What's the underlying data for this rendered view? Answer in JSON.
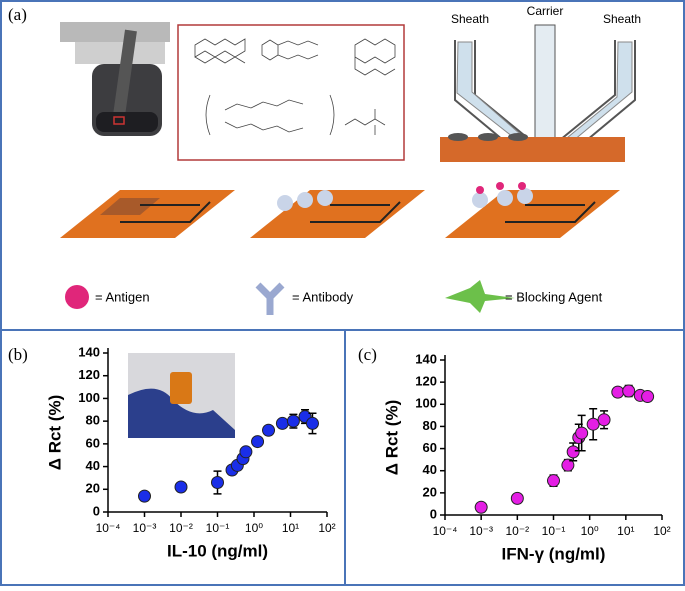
{
  "panel_a": {
    "label": "(a)",
    "nozzle_labels": [
      "Sheath",
      "Carrier",
      "Sheath"
    ],
    "legend": [
      "= Antigen",
      "= Antibody",
      "= Blocking Agent"
    ]
  },
  "chart_data": [
    {
      "type": "scatter",
      "panel_label": "(b)",
      "xlabel": "IL-10 (ng/ml)",
      "ylabel": "Δ Rct (%)",
      "xscale": "log",
      "xlim": [
        0.0001,
        100
      ],
      "ylim": [
        0,
        140
      ],
      "xticks": [
        {
          "value": 0.0001,
          "label": "10⁻⁴"
        },
        {
          "value": 0.001,
          "label": "10⁻³"
        },
        {
          "value": 0.01,
          "label": "10⁻²"
        },
        {
          "value": 0.1,
          "label": "10⁻¹"
        },
        {
          "value": 1,
          "label": "10⁰"
        },
        {
          "value": 10,
          "label": "10¹"
        },
        {
          "value": 100,
          "label": "10²"
        }
      ],
      "yticks": [
        0,
        20,
        40,
        60,
        80,
        100,
        120,
        140
      ],
      "series": [
        {
          "color": "#1a2ee8",
          "x": [
            0.001,
            0.01,
            0.1,
            0.25,
            0.35,
            0.5,
            0.6,
            1.25,
            2.5,
            6,
            12,
            25,
            40
          ],
          "values": [
            14,
            22,
            26,
            37,
            41,
            47,
            53,
            62,
            72,
            78,
            80,
            84,
            78
          ],
          "errors": [
            0,
            0,
            10,
            3,
            3,
            3,
            3,
            2,
            2,
            3,
            6,
            6,
            9
          ]
        }
      ]
    },
    {
      "type": "scatter",
      "panel_label": "(c)",
      "xlabel": "IFN-γ (ng/ml)",
      "ylabel": "Δ Rct (%)",
      "xscale": "log",
      "xlim": [
        0.0001,
        100
      ],
      "ylim": [
        0,
        140
      ],
      "xticks": [
        {
          "value": 0.0001,
          "label": "10⁻⁴"
        },
        {
          "value": 0.001,
          "label": "10⁻³"
        },
        {
          "value": 0.01,
          "label": "10⁻²"
        },
        {
          "value": 0.1,
          "label": "10⁻¹"
        },
        {
          "value": 1,
          "label": "10⁰"
        },
        {
          "value": 10,
          "label": "10¹"
        },
        {
          "value": 100,
          "label": "10²"
        }
      ],
      "yticks": [
        0,
        20,
        40,
        60,
        80,
        100,
        120,
        140
      ],
      "series": [
        {
          "color": "#e41ee4",
          "x": [
            0.001,
            0.01,
            0.1,
            0.25,
            0.35,
            0.5,
            0.6,
            1.25,
            2.5,
            6,
            12,
            25,
            40
          ],
          "values": [
            7,
            15,
            31,
            45,
            57,
            70,
            74,
            82,
            86,
            111,
            112,
            108,
            107
          ],
          "errors": [
            0,
            0,
            5,
            5,
            8,
            12,
            16,
            14,
            8,
            4,
            5,
            3,
            3
          ]
        }
      ]
    }
  ]
}
